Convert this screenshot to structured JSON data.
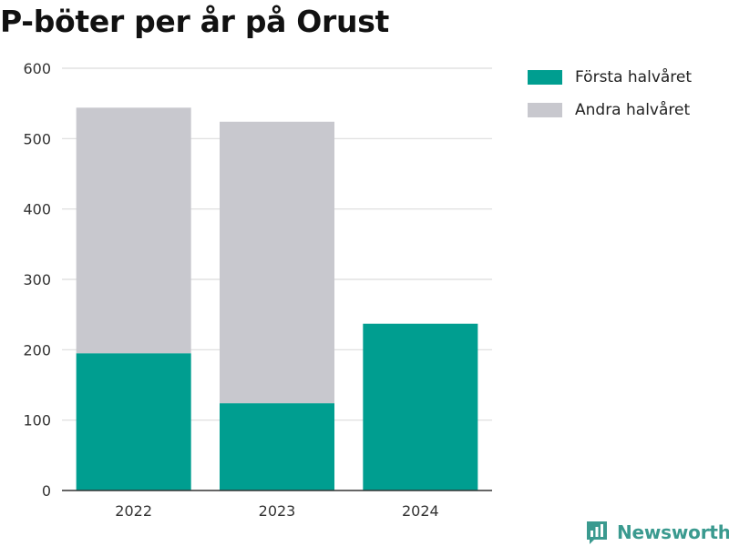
{
  "chart_data": {
    "type": "bar",
    "stacked": true,
    "title": "P-böter per år på Orust",
    "categories": [
      "2022",
      "2023",
      "2024"
    ],
    "series": [
      {
        "name": "Första halvåret",
        "color": "#009e90",
        "values": [
          195,
          124,
          237
        ]
      },
      {
        "name": "Andra halvåret",
        "color": "#c8c8ce",
        "values": [
          349,
          400,
          0
        ]
      }
    ],
    "ylim": [
      0,
      600
    ],
    "yticks": [
      "0",
      "100",
      "200",
      "300",
      "400",
      "500",
      "600"
    ],
    "xlabel": "",
    "ylabel": "",
    "grid": true,
    "legend_position": "right"
  },
  "brand": {
    "name": "Newsworthy",
    "icon": "bar-chart-icon",
    "color": "#3a9a8f"
  }
}
